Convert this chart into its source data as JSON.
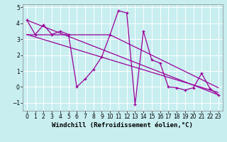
{
  "background_color": "#c8eef0",
  "plot_bg_color": "#c8eef0",
  "line_color": "#990099",
  "xlabel": "Windchill (Refroidissement éolien,°C)",
  "ylim": [
    -1.5,
    5.2
  ],
  "xlim": [
    -0.5,
    23.5
  ],
  "yticks": [
    -1,
    0,
    1,
    2,
    3,
    4,
    5
  ],
  "xticks": [
    0,
    1,
    2,
    3,
    4,
    5,
    6,
    7,
    8,
    9,
    10,
    11,
    12,
    13,
    14,
    15,
    16,
    17,
    18,
    19,
    20,
    21,
    22,
    23
  ],
  "main_line": {
    "x": [
      0,
      1,
      2,
      3,
      4,
      5,
      6,
      7,
      8,
      9,
      10,
      11,
      12,
      13,
      14,
      15,
      16,
      17,
      18,
      19,
      20,
      21,
      22,
      23
    ],
    "y": [
      4.2,
      3.3,
      3.9,
      3.3,
      3.5,
      3.3,
      0.0,
      0.5,
      1.1,
      1.9,
      3.3,
      4.8,
      4.65,
      -1.1,
      3.5,
      1.7,
      1.5,
      0.0,
      -0.05,
      -0.2,
      -0.05,
      0.85,
      -0.1,
      -0.5
    ]
  },
  "trend_lines": [
    {
      "x": [
        0,
        23
      ],
      "y": [
        4.2,
        -0.5
      ]
    },
    {
      "x": [
        0,
        23
      ],
      "y": [
        3.3,
        -0.35
      ]
    },
    {
      "x": [
        0,
        10,
        23
      ],
      "y": [
        3.28,
        3.28,
        -0.05
      ]
    }
  ],
  "grid_color": "#ffffff",
  "spine_color": "#888888",
  "xlabel_fontsize": 6.5,
  "tick_fontsize": 5.5
}
